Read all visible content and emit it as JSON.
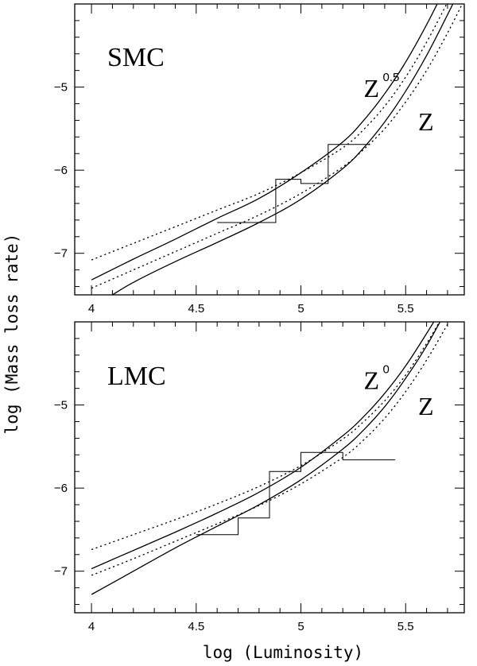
{
  "chart_data": [
    {
      "type": "line",
      "panel_label": "SMC",
      "xlim": [
        3.92,
        5.78
      ],
      "ylim": [
        -7.5,
        -4.0
      ],
      "x_ticks": [
        4,
        4.5,
        5,
        5.5
      ],
      "x_tick_labels": [
        "4",
        "4.5",
        "5",
        "5.5"
      ],
      "y_ticks": [
        -7,
        -6,
        -5
      ],
      "y_tick_labels": [
        "−7",
        "−6",
        "−5"
      ],
      "annotations": [
        {
          "id": "upper",
          "base": "Z",
          "sup": "0.5",
          "x": 5.3,
          "y": -5.12
        },
        {
          "id": "lower",
          "base": "Z",
          "sup": "",
          "x": 5.56,
          "y": -5.52
        }
      ],
      "series": [
        {
          "style": "solid",
          "points": [
            [
              4.0,
              -7.32
            ],
            [
              4.2,
              -7.07
            ],
            [
              4.4,
              -6.83
            ],
            [
              4.6,
              -6.58
            ],
            [
              4.8,
              -6.34
            ],
            [
              5.0,
              -6.03
            ],
            [
              5.2,
              -5.66
            ],
            [
              5.3,
              -5.4
            ],
            [
              5.4,
              -5.08
            ],
            [
              5.5,
              -4.7
            ],
            [
              5.6,
              -4.25
            ],
            [
              5.7,
              -3.75
            ]
          ]
        },
        {
          "style": "solid",
          "points": [
            [
              4.1,
              -7.5
            ],
            [
              4.2,
              -7.35
            ],
            [
              4.4,
              -7.1
            ],
            [
              4.6,
              -6.87
            ],
            [
              4.8,
              -6.63
            ],
            [
              5.0,
              -6.35
            ],
            [
              5.2,
              -5.98
            ],
            [
              5.3,
              -5.73
            ],
            [
              5.4,
              -5.42
            ],
            [
              5.5,
              -5.05
            ],
            [
              5.6,
              -4.62
            ],
            [
              5.7,
              -4.13
            ],
            [
              5.78,
              -3.72
            ]
          ]
        },
        {
          "style": "dotted",
          "points": [
            [
              4.0,
              -7.08
            ],
            [
              4.2,
              -6.88
            ],
            [
              4.4,
              -6.68
            ],
            [
              4.6,
              -6.48
            ],
            [
              4.8,
              -6.28
            ],
            [
              5.0,
              -6.03
            ],
            [
              5.2,
              -5.73
            ],
            [
              5.3,
              -5.51
            ],
            [
              5.4,
              -5.23
            ],
            [
              5.5,
              -4.88
            ],
            [
              5.6,
              -4.46
            ],
            [
              5.7,
              -3.98
            ],
            [
              5.75,
              -3.72
            ]
          ]
        },
        {
          "style": "dotted",
          "points": [
            [
              4.0,
              -7.42
            ],
            [
              4.2,
              -7.2
            ],
            [
              4.4,
              -6.98
            ],
            [
              4.6,
              -6.76
            ],
            [
              4.8,
              -6.54
            ],
            [
              5.0,
              -6.28
            ],
            [
              5.2,
              -5.96
            ],
            [
              5.3,
              -5.75
            ],
            [
              5.4,
              -5.5
            ],
            [
              5.5,
              -5.18
            ],
            [
              5.6,
              -4.8
            ],
            [
              5.7,
              -4.35
            ],
            [
              5.78,
              -3.95
            ]
          ]
        },
        {
          "style": "step",
          "points": [
            [
              4.6,
              -6.63
            ],
            [
              4.88,
              -6.63
            ],
            [
              4.88,
              -6.11
            ],
            [
              5.0,
              -6.11
            ],
            [
              5.0,
              -6.16
            ],
            [
              5.13,
              -6.16
            ],
            [
              5.13,
              -5.69
            ],
            [
              5.33,
              -5.69
            ]
          ]
        }
      ]
    },
    {
      "type": "line",
      "panel_label": "LMC",
      "xlim": [
        3.92,
        5.78
      ],
      "ylim": [
        -7.5,
        -4.0
      ],
      "x_ticks": [
        4,
        4.5,
        5,
        5.5
      ],
      "x_tick_labels": [
        "4",
        "4.5",
        "5",
        "5.5"
      ],
      "y_ticks": [
        -7,
        -6,
        -5
      ],
      "y_tick_labels": [
        "−7",
        "−6",
        "−5"
      ],
      "annotations": [
        {
          "id": "upper",
          "base": "Z",
          "sup": "0",
          "x": 5.3,
          "y": -4.81
        },
        {
          "id": "lower",
          "base": "Z",
          "sup": "",
          "x": 5.56,
          "y": -5.12
        }
      ],
      "series": [
        {
          "style": "solid",
          "points": [
            [
              4.0,
              -6.97
            ],
            [
              4.2,
              -6.75
            ],
            [
              4.4,
              -6.53
            ],
            [
              4.6,
              -6.3
            ],
            [
              4.8,
              -6.05
            ],
            [
              5.0,
              -5.75
            ],
            [
              5.2,
              -5.37
            ],
            [
              5.3,
              -5.14
            ],
            [
              5.4,
              -4.86
            ],
            [
              5.5,
              -4.53
            ],
            [
              5.6,
              -4.14
            ],
            [
              5.7,
              -3.73
            ]
          ]
        },
        {
          "style": "solid",
          "points": [
            [
              4.0,
              -7.28
            ],
            [
              4.2,
              -7.0
            ],
            [
              4.4,
              -6.72
            ],
            [
              4.6,
              -6.46
            ],
            [
              4.8,
              -6.2
            ],
            [
              5.0,
              -5.9
            ],
            [
              5.2,
              -5.53
            ],
            [
              5.3,
              -5.3
            ],
            [
              5.4,
              -5.02
            ],
            [
              5.5,
              -4.68
            ],
            [
              5.6,
              -4.29
            ],
            [
              5.7,
              -3.84
            ],
            [
              5.74,
              -3.72
            ]
          ]
        },
        {
          "style": "dotted",
          "points": [
            [
              4.0,
              -6.74
            ],
            [
              4.2,
              -6.56
            ],
            [
              4.4,
              -6.38
            ],
            [
              4.6,
              -6.19
            ],
            [
              4.8,
              -5.98
            ],
            [
              5.0,
              -5.73
            ],
            [
              5.2,
              -5.41
            ],
            [
              5.3,
              -5.2
            ],
            [
              5.4,
              -4.95
            ],
            [
              5.5,
              -4.64
            ],
            [
              5.6,
              -4.26
            ],
            [
              5.7,
              -3.84
            ],
            [
              5.74,
              -3.72
            ]
          ]
        },
        {
          "style": "dotted",
          "points": [
            [
              4.0,
              -7.05
            ],
            [
              4.2,
              -6.85
            ],
            [
              4.4,
              -6.64
            ],
            [
              4.6,
              -6.43
            ],
            [
              4.8,
              -6.21
            ],
            [
              5.0,
              -5.95
            ],
            [
              5.2,
              -5.63
            ],
            [
              5.3,
              -5.42
            ],
            [
              5.4,
              -5.16
            ],
            [
              5.5,
              -4.84
            ],
            [
              5.6,
              -4.46
            ],
            [
              5.7,
              -4.03
            ],
            [
              5.77,
              -3.72
            ]
          ]
        },
        {
          "style": "step",
          "points": [
            [
              4.5,
              -6.56
            ],
            [
              4.7,
              -6.56
            ],
            [
              4.7,
              -6.36
            ],
            [
              4.85,
              -6.36
            ],
            [
              4.85,
              -5.8
            ],
            [
              5.0,
              -5.8
            ],
            [
              5.0,
              -5.57
            ],
            [
              5.2,
              -5.57
            ],
            [
              5.2,
              -5.66
            ],
            [
              5.45,
              -5.66
            ]
          ]
        }
      ]
    }
  ],
  "axes": {
    "xlabel": "log  (Luminosity)",
    "ylabel": "log  (Mass loss rate)"
  }
}
